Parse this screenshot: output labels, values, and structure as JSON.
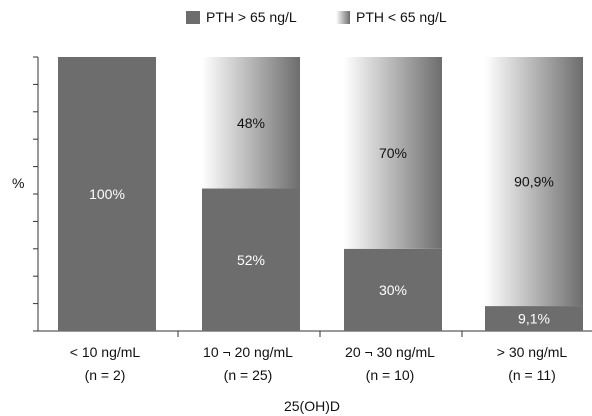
{
  "chart_data": {
    "type": "bar",
    "stacked": true,
    "percent": true,
    "title": "",
    "ylabel": "%",
    "xlabel": "25(OH)D",
    "ylim": [
      0,
      100
    ],
    "categories": [
      "< 10 ng/mL",
      "10 ¬ 20 ng/mL",
      "20 ¬ 30 ng/mL",
      "> 30 ng/mL"
    ],
    "category_n": [
      "(n =  2)",
      "(n = 25)",
      "(n = 10)",
      "(n = 11)"
    ],
    "series": [
      {
        "name": "PTH > 65 ng/L",
        "values": [
          100,
          52,
          30,
          9.1
        ],
        "labels": [
          "100%",
          "52%",
          "30%",
          "9,1%"
        ],
        "color": "#6d6d6d"
      },
      {
        "name": "PTH < 65 ng/L",
        "values": [
          0,
          48,
          70,
          90.9
        ],
        "labels": [
          "",
          "48%",
          "70%",
          "90,9%"
        ],
        "color_light": "#ffffff",
        "color_dark": "#6d6d6d"
      }
    ],
    "legend_position": "top",
    "grid": false
  }
}
